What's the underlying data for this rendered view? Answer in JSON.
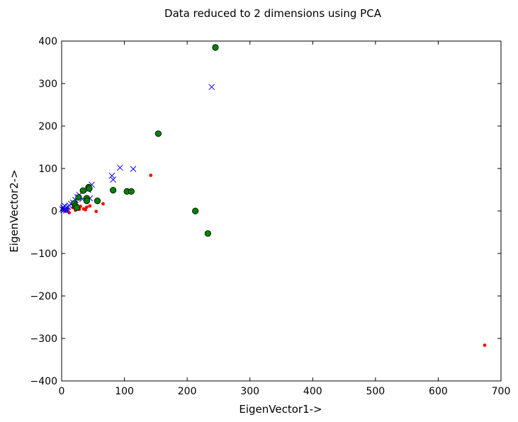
{
  "chart_data": {
    "type": "scatter",
    "title": "Data reduced to 2 dimensions using PCA",
    "xlabel": "EigenVector1->",
    "ylabel": "EigenVector2->",
    "xlim": [
      0,
      700
    ],
    "ylim": [
      -400,
      400
    ],
    "xticks": [
      0,
      100,
      200,
      300,
      400,
      500,
      600,
      700
    ],
    "yticks": [
      400,
      300,
      200,
      100,
      0,
      -100,
      -200,
      -300,
      -400
    ],
    "grid": false,
    "legend": "none",
    "series": [
      {
        "marker": "dot",
        "color": "#ff0000",
        "points": [
          [
            674,
            -316
          ],
          [
            142,
            84
          ],
          [
            66,
            17
          ],
          [
            55,
            -1
          ],
          [
            38,
            3
          ],
          [
            35,
            5
          ],
          [
            40,
            9
          ],
          [
            30,
            11
          ],
          [
            22,
            2
          ],
          [
            18,
            8
          ],
          [
            12,
            -4
          ],
          [
            10,
            4
          ],
          [
            8,
            2
          ],
          [
            5,
            0
          ],
          [
            3,
            5
          ],
          [
            28,
            4
          ],
          [
            45,
            12
          ]
        ]
      },
      {
        "marker": "x",
        "color": "#0000ff",
        "points": [
          [
            239,
            292
          ],
          [
            93,
            102
          ],
          [
            114,
            99
          ],
          [
            80,
            83
          ],
          [
            82,
            74
          ],
          [
            48,
            62
          ],
          [
            42,
            50
          ],
          [
            45,
            30
          ],
          [
            33,
            28
          ],
          [
            28,
            38
          ],
          [
            25,
            33
          ],
          [
            22,
            26
          ],
          [
            18,
            20
          ],
          [
            15,
            17
          ],
          [
            12,
            13
          ],
          [
            10,
            10
          ],
          [
            8,
            7
          ],
          [
            6,
            5
          ],
          [
            4,
            3
          ],
          [
            3,
            2
          ],
          [
            2,
            8
          ],
          [
            5,
            12
          ],
          [
            7,
            1
          ],
          [
            1,
            4
          ]
        ]
      },
      {
        "marker": "circle",
        "color": "#008000",
        "points": [
          [
            245,
            385
          ],
          [
            154,
            182
          ],
          [
            43,
            56
          ],
          [
            44,
            53
          ],
          [
            34,
            48
          ],
          [
            82,
            49
          ],
          [
            104,
            46
          ],
          [
            111,
            46
          ],
          [
            213,
            0
          ],
          [
            233,
            -53
          ],
          [
            57,
            24
          ],
          [
            40,
            30
          ],
          [
            40,
            24
          ],
          [
            27,
            32
          ],
          [
            20,
            18
          ],
          [
            22,
            12
          ],
          [
            24,
            8
          ]
        ]
      }
    ]
  }
}
